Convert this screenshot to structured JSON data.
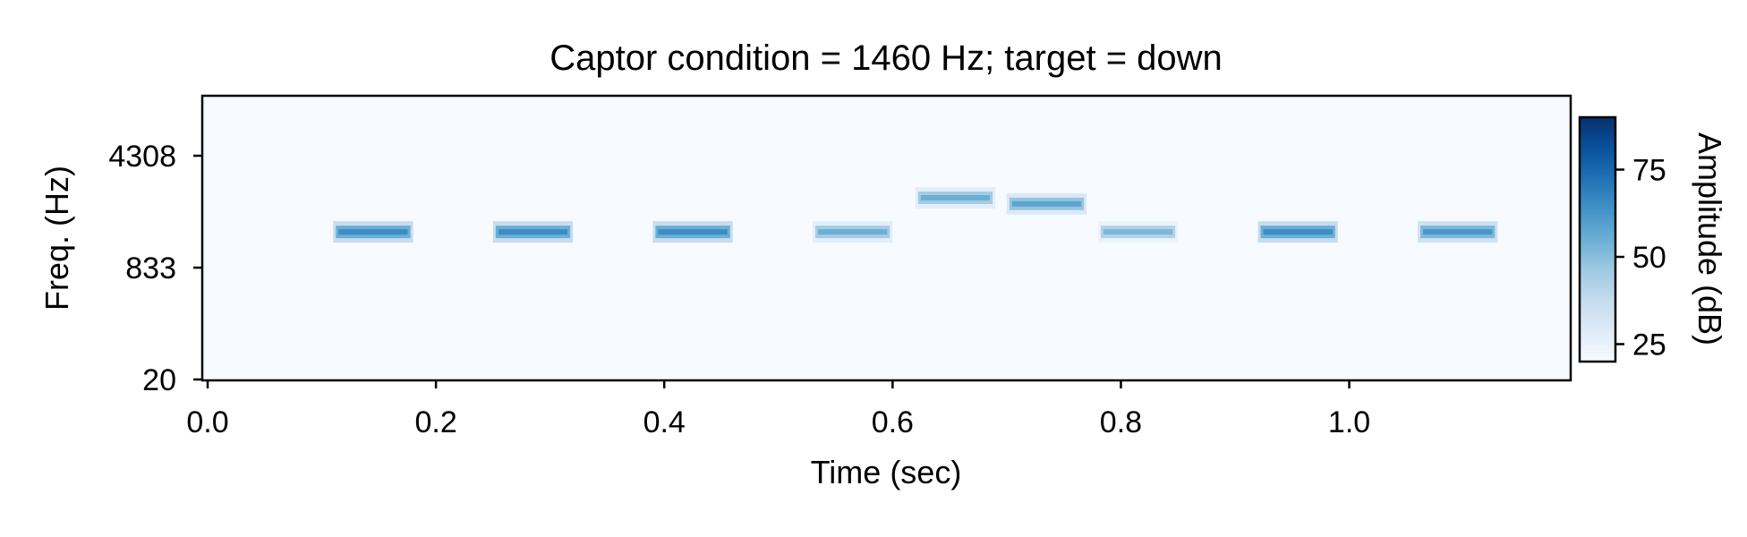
{
  "chart_data": {
    "type": "heatmap",
    "title": "Captor condition = 1460 Hz; target = down",
    "xlabel": "Time (sec)",
    "ylabel": "Freq. (Hz)",
    "xlim": [
      0,
      1.195
    ],
    "x_ticks": [
      {
        "value": 0.0,
        "label": "0.0"
      },
      {
        "value": 0.2,
        "label": "0.2"
      },
      {
        "value": 0.4,
        "label": "0.4"
      },
      {
        "value": 0.6,
        "label": "0.6"
      },
      {
        "value": 0.8,
        "label": "0.8"
      },
      {
        "value": 1.0,
        "label": "1.0"
      }
    ],
    "y_scale": "log-like (ERB)",
    "y_ticks": [
      {
        "value": 20,
        "label": "20"
      },
      {
        "value": 833,
        "label": "833"
      },
      {
        "value": 4308,
        "label": "4308"
      }
    ],
    "tones": [
      {
        "t_start": 0.11,
        "t_end": 0.18,
        "freq": 1460,
        "amplitude": 65
      },
      {
        "t_start": 0.25,
        "t_end": 0.32,
        "freq": 1460,
        "amplitude": 65
      },
      {
        "t_start": 0.39,
        "t_end": 0.46,
        "freq": 1460,
        "amplitude": 65
      },
      {
        "t_start": 0.53,
        "t_end": 0.6,
        "freq": 1460,
        "amplitude": 55
      },
      {
        "t_start": 0.62,
        "t_end": 0.69,
        "freq": 2400,
        "amplitude": 55
      },
      {
        "t_start": 0.7,
        "t_end": 0.77,
        "freq": 2200,
        "amplitude": 58
      },
      {
        "t_start": 0.78,
        "t_end": 0.85,
        "freq": 1460,
        "amplitude": 52
      },
      {
        "t_start": 0.92,
        "t_end": 0.99,
        "freq": 1460,
        "amplitude": 65
      },
      {
        "t_start": 1.06,
        "t_end": 1.13,
        "freq": 1460,
        "amplitude": 62
      }
    ],
    "colorbar": {
      "label": "Amplitude (dB)",
      "colormap": "Blues",
      "range": [
        20,
        90
      ],
      "ticks": [
        {
          "value": 25,
          "label": "25"
        },
        {
          "value": 50,
          "label": "50"
        },
        {
          "value": 75,
          "label": "75"
        }
      ]
    },
    "colors": {
      "background": "#f7fbff",
      "low": "#f7fbff",
      "mid": "#6baed6",
      "high": "#08306b"
    }
  }
}
